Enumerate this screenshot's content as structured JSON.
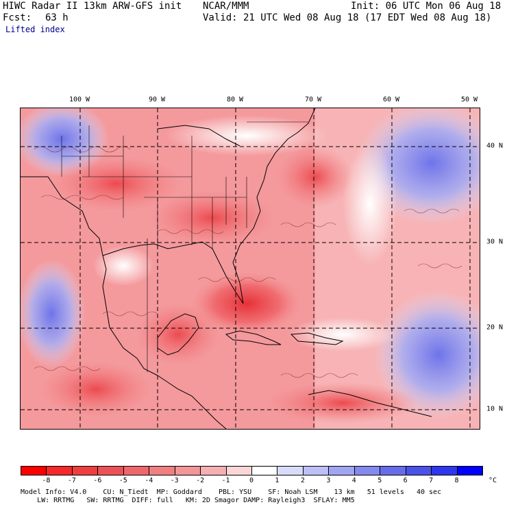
{
  "header": {
    "model_line": "HIWC Radar II 13km ARW-GFS init",
    "source": "NCAR/MMM",
    "init": "Init: 06 UTC Mon 06 Aug 18",
    "fcst_label": "Fcst:",
    "fcst_value": "63 h",
    "valid": "Valid: 21 UTC Wed 08 Aug 18 (17 EDT Wed 08 Aug 18)",
    "field": "Lifted index"
  },
  "map": {
    "lon_labels": [
      "100 W",
      "90 W",
      "80 W",
      "70 W",
      "60 W",
      "50 W"
    ],
    "lat_labels": [
      "40 N",
      "30 N",
      "20 N",
      "10 N"
    ],
    "field_colors": {
      "negative": "#e8303a",
      "mid": "#f7a4a6",
      "neutral": "#ffffff",
      "positive": "#6c72ea"
    }
  },
  "colorbar": {
    "ticks": [
      "-8",
      "-7",
      "-6",
      "-5",
      "-4",
      "-3",
      "-2",
      "-1",
      "0",
      "1",
      "2",
      "3",
      "4",
      "5",
      "6",
      "7",
      "8"
    ],
    "unit": "°C",
    "colors": [
      "#ff0000",
      "#f5282a",
      "#ef3e40",
      "#ec5255",
      "#ee686b",
      "#f07f82",
      "#f39698",
      "#f6b0b2",
      "#fbd6d7",
      "#ffffff",
      "#d8dcfa",
      "#bcc0f6",
      "#a0a6f1",
      "#8389ed",
      "#676dea",
      "#4b52e8",
      "#2e37ee",
      "#0000ff"
    ]
  },
  "footer": {
    "line1": "Model Info: V4.0    CU: N_Tiedt  MP: Goddard    PBL: YSU    SF: Noah LSM    13 km   51 levels   40 sec",
    "line2": "    LW: RRTMG   SW: RRTMG  DIFF: full   KM: 2D Smagor DAMP: Rayleigh3  SFLAY: MM5"
  }
}
